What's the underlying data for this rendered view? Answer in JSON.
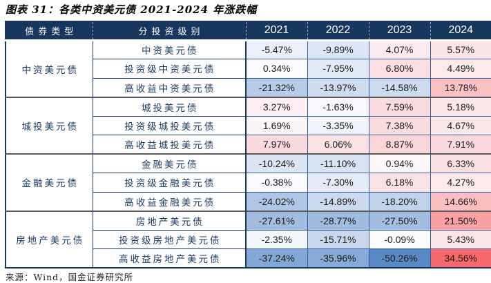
{
  "title": "图表 31：各类中资美元债 2021-2024 年涨跌幅",
  "source": "来源：Wind，国金证券研究所",
  "colors": {
    "header_bg": "#17375E",
    "header_text": "#FFFFFF",
    "label_text": "#17375E",
    "value_text": "#1A1A1A",
    "cell_border": "#2D5A9B",
    "group_separator": "#595959",
    "scale_min_blue": "#5A8AC6",
    "scale_mid_white": "#FCFCFF",
    "scale_max_red": "#F8696B"
  },
  "chart_data": {
    "type": "table",
    "title": "各类中资美元债 2021-2024 年涨跌幅",
    "unit": "%",
    "color_scale": {
      "type": "3-color",
      "min_value": -50.26,
      "mid_value": 0,
      "max_value": 34.56,
      "min_color": "#5A8AC6",
      "mid_color": "#FCFCFF",
      "max_color": "#F8696B"
    },
    "columns": [
      "债券类型",
      "分投资级别",
      "2021",
      "2022",
      "2023",
      "2024"
    ],
    "groups": [
      {
        "type": "中资美元债",
        "rows": [
          {
            "label": "中资美元债",
            "values": [
              -5.47,
              -9.89,
              4.07,
              5.57
            ]
          },
          {
            "label": "投资级中资美元债",
            "values": [
              0.34,
              -7.95,
              6.8,
              4.49
            ]
          },
          {
            "label": "高收益中资美元债",
            "values": [
              -21.32,
              -13.97,
              -14.58,
              13.78
            ]
          }
        ]
      },
      {
        "type": "城投美元债",
        "rows": [
          {
            "label": "城投美元债",
            "values": [
              3.27,
              -1.63,
              7.59,
              5.18
            ]
          },
          {
            "label": "投资级城投美元债",
            "values": [
              1.69,
              -3.35,
              7.38,
              4.67
            ]
          },
          {
            "label": "高收益城投美元债",
            "values": [
              7.97,
              6.06,
              8.87,
              7.91
            ]
          }
        ]
      },
      {
        "type": "金融美元债",
        "rows": [
          {
            "label": "金融美元债",
            "values": [
              -10.24,
              -11.1,
              0.94,
              6.33
            ]
          },
          {
            "label": "投资级金融美元债",
            "values": [
              -0.38,
              -7.3,
              6.18,
              4.27
            ]
          },
          {
            "label": "高收益金融美元债",
            "values": [
              -24.02,
              -14.89,
              -18.2,
              14.66
            ]
          }
        ]
      },
      {
        "type": "房地产美元债",
        "rows": [
          {
            "label": "房地产美元债",
            "values": [
              -27.61,
              -28.77,
              -27.5,
              21.5
            ]
          },
          {
            "label": "投资级房地产美元债",
            "values": [
              -2.35,
              -15.71,
              -0.09,
              5.43
            ]
          },
          {
            "label": "高收益房地产美元债",
            "values": [
              -37.24,
              -35.96,
              -50.26,
              34.56
            ]
          }
        ]
      }
    ]
  }
}
